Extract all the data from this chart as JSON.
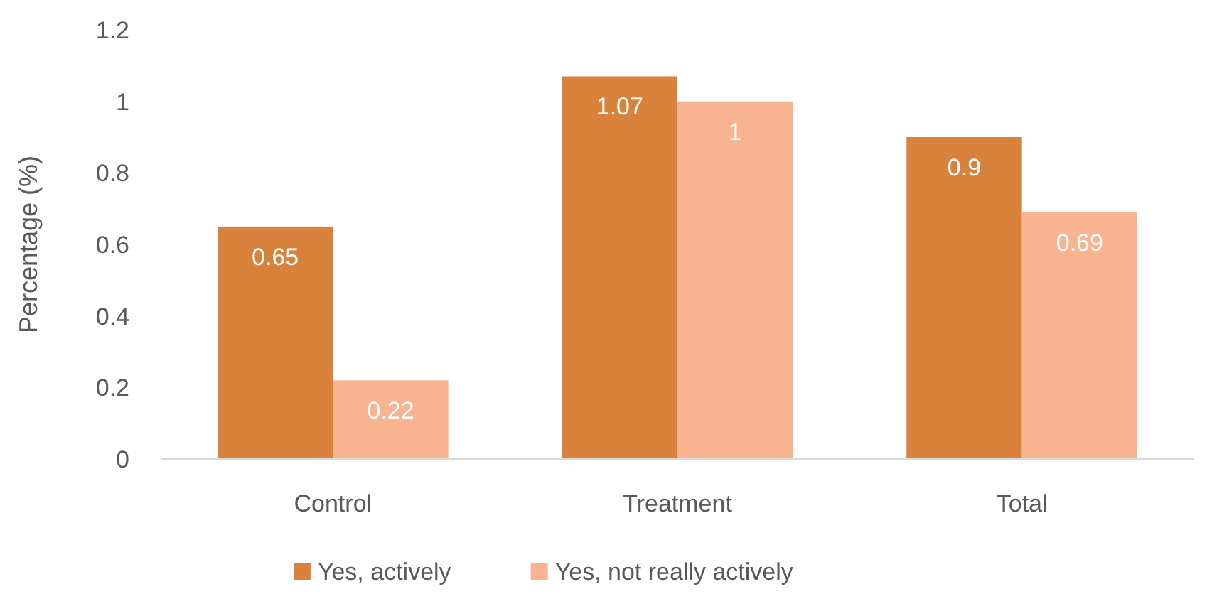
{
  "chart_data": {
    "type": "bar",
    "ylabel": "Percentage (%)",
    "categories": [
      "Control",
      "Treatment",
      "Total"
    ],
    "series": [
      {
        "name": "Yes, actively",
        "color": "#d9823b",
        "values": [
          0.65,
          1.07,
          0.9
        ]
      },
      {
        "name": "Yes, not really actively",
        "color": "#f8b490",
        "values": [
          0.22,
          1,
          0.69
        ]
      }
    ],
    "ylim": [
      0,
      1.2
    ],
    "yticks": [
      0,
      0.2,
      0.4,
      0.6,
      0.8,
      1,
      1.2
    ],
    "grid": false,
    "legend": "bottom",
    "data_labels": true
  }
}
